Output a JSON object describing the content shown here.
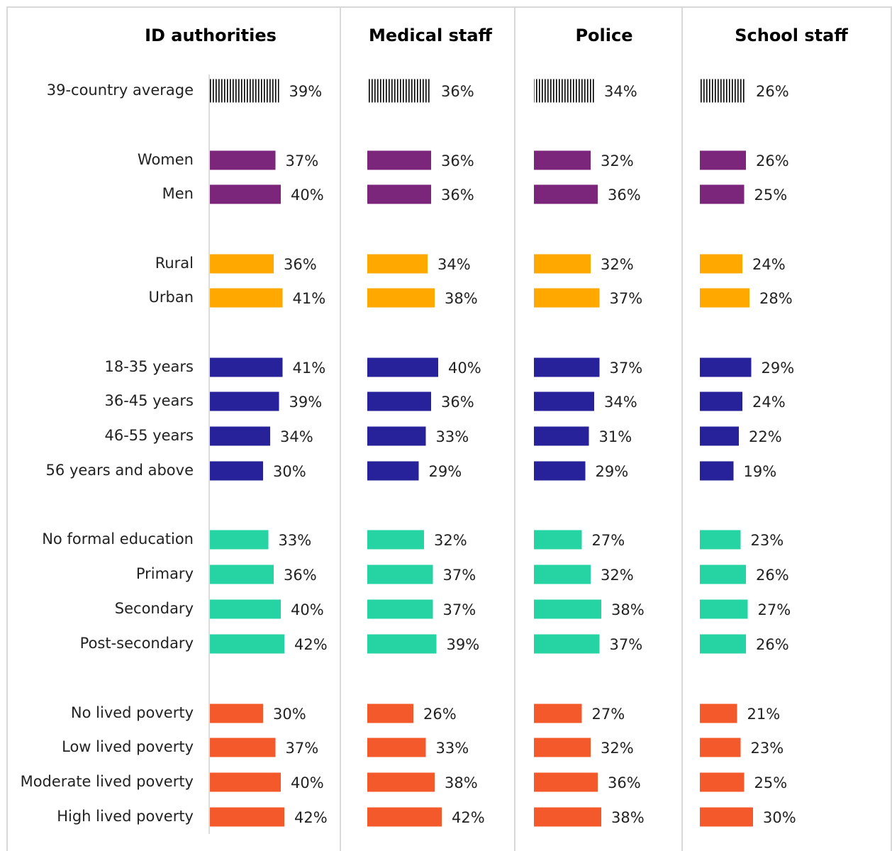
{
  "chart_data": {
    "type": "bar",
    "orientation": "horizontal",
    "categories": [
      "39-country average",
      "Women",
      "Men",
      "Rural",
      "Urban",
      "18-35 years",
      "36-45 years",
      "46-55 years",
      "56 years and above",
      "No formal education",
      "Primary",
      "Secondary",
      "Post-secondary",
      "No lived poverty",
      "Low lived poverty",
      "Moderate lived poverty",
      "High lived poverty"
    ],
    "category_colors": [
      "hatched",
      "#7b267a",
      "#7b267a",
      "#ffa800",
      "#ffa800",
      "#28229a",
      "#28229a",
      "#28229a",
      "#28229a",
      "#25d3a3",
      "#25d3a3",
      "#25d3a3",
      "#25d3a3",
      "#f4592b",
      "#f4592b",
      "#f4592b",
      "#f4592b"
    ],
    "series": [
      {
        "name": "ID authorities",
        "values": [
          39,
          37,
          40,
          36,
          41,
          41,
          39,
          34,
          30,
          33,
          36,
          40,
          42,
          30,
          37,
          40,
          42
        ],
        "value_labels": [
          "39%",
          "37%",
          "40%",
          "36%",
          "41%",
          "41%",
          "39%",
          "34%",
          "30%",
          "33%",
          "36%",
          "40%",
          "42%",
          "30%",
          "37%",
          "40%",
          "42%"
        ]
      },
      {
        "name": "Medical staff",
        "values": [
          36,
          36,
          36,
          34,
          38,
          40,
          36,
          33,
          29,
          32,
          37,
          37,
          39,
          26,
          33,
          38,
          42
        ],
        "value_labels": [
          "36%",
          "36%",
          "36%",
          "34%",
          "38%",
          "40%",
          "36%",
          "33%",
          "29%",
          "32%",
          "37%",
          "37%",
          "39%",
          "26%",
          "33%",
          "38%",
          "42%"
        ]
      },
      {
        "name": "Police",
        "values": [
          34,
          32,
          36,
          32,
          37,
          37,
          34,
          31,
          29,
          27,
          32,
          38,
          37,
          27,
          32,
          36,
          38
        ],
        "value_labels": [
          "34%",
          "32%",
          "36%",
          "32%",
          "37%",
          "37%",
          "34%",
          "31%",
          "29%",
          "27%",
          "32%",
          "38%",
          "37%",
          "27%",
          "32%",
          "36%",
          "38%"
        ]
      },
      {
        "name": "School staff",
        "values": [
          26,
          26,
          25,
          24,
          28,
          29,
          24,
          22,
          19,
          23,
          26,
          27,
          26,
          21,
          23,
          25,
          30
        ],
        "value_labels": [
          "26%",
          "26%",
          "25%",
          "24%",
          "28%",
          "29%",
          "24%",
          "22%",
          "19%",
          "23%",
          "26%",
          "27%",
          "26%",
          "21%",
          "23%",
          "25%",
          "30%"
        ]
      }
    ]
  }
}
